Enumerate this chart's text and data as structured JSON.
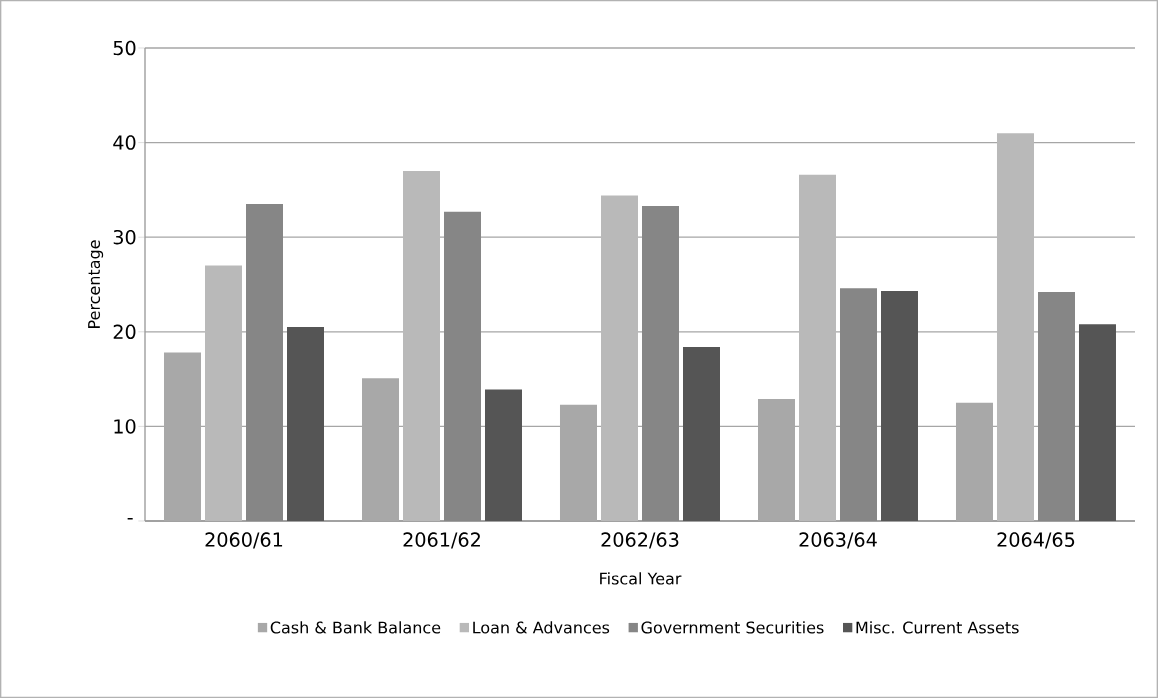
{
  "chart_data": {
    "type": "bar",
    "xlabel": "Fiscal Year",
    "ylabel": "Percentage",
    "categories": [
      "2060/61",
      "2061/62",
      "2062/63",
      "2063/64",
      "2064/65"
    ],
    "series": [
      {
        "name": "Cash & Bank Balance",
        "color": "#a8a8a8",
        "values": [
          17.8,
          15.1,
          12.3,
          12.9,
          12.5
        ]
      },
      {
        "name": "Loan & Advances",
        "color": "#b9b9b9",
        "values": [
          27.0,
          37.0,
          34.4,
          36.6,
          41.0
        ]
      },
      {
        "name": "Government Securities",
        "color": "#868686",
        "values": [
          33.5,
          32.7,
          33.3,
          24.6,
          24.2
        ]
      },
      {
        "name": "Misc. Current Assets",
        "color": "#555555",
        "values": [
          20.5,
          13.9,
          18.4,
          24.3,
          20.8
        ]
      }
    ],
    "ylim": [
      0,
      50
    ],
    "yticks": [
      {
        "value": 0,
        "label": "-"
      },
      10,
      20,
      30,
      40,
      50
    ],
    "grid": "y",
    "legend": "bottom"
  }
}
